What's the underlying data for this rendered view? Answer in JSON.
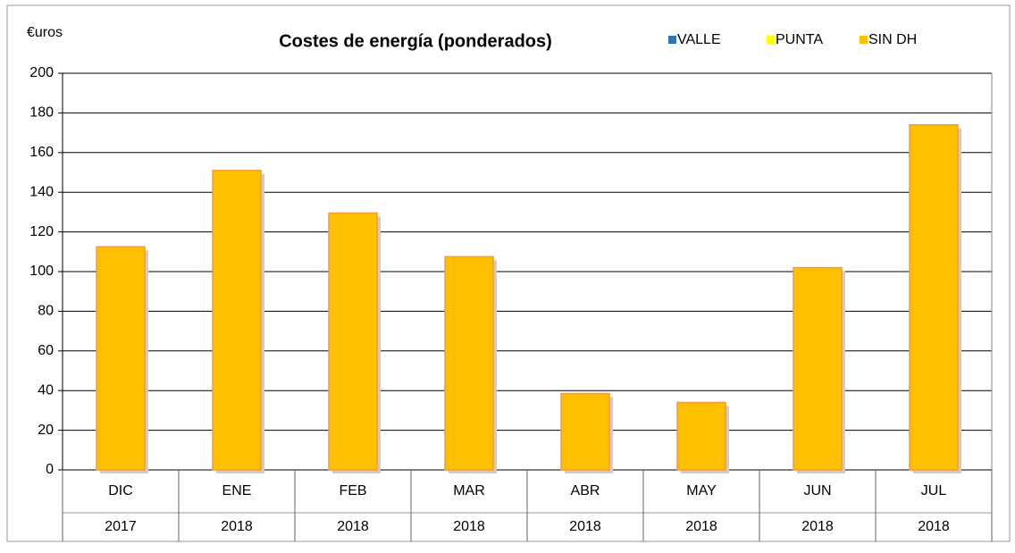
{
  "chart_data": {
    "type": "stacked_bar",
    "title": "Costes de energía (ponderados)",
    "y_label": "€uros",
    "categories": [
      "DIC",
      "ENE",
      "FEB",
      "MAR",
      "ABR",
      "MAY",
      "JUN",
      "JUL"
    ],
    "category_years": [
      "2017",
      "2018",
      "2018",
      "2018",
      "2018",
      "2018",
      "2018",
      "2018"
    ],
    "series": [
      {
        "name": "VALLE",
        "color": "#2e75b6",
        "values": [
          0,
          0,
          0,
          0,
          0,
          0,
          0,
          0
        ]
      },
      {
        "name": "PUNTA",
        "color": "#ffff00",
        "values": [
          0,
          0,
          0,
          0,
          0,
          0,
          0,
          0
        ]
      },
      {
        "name": "SIN DH",
        "color": "#ffc000",
        "values": [
          112.5,
          151,
          129.5,
          107.5,
          38.5,
          34,
          102,
          174
        ]
      }
    ],
    "ylim": [
      0,
      200
    ],
    "yticks": [
      0,
      20,
      40,
      60,
      80,
      100,
      120,
      140,
      160,
      180,
      200
    ],
    "grid": true,
    "legend": "top-right"
  }
}
